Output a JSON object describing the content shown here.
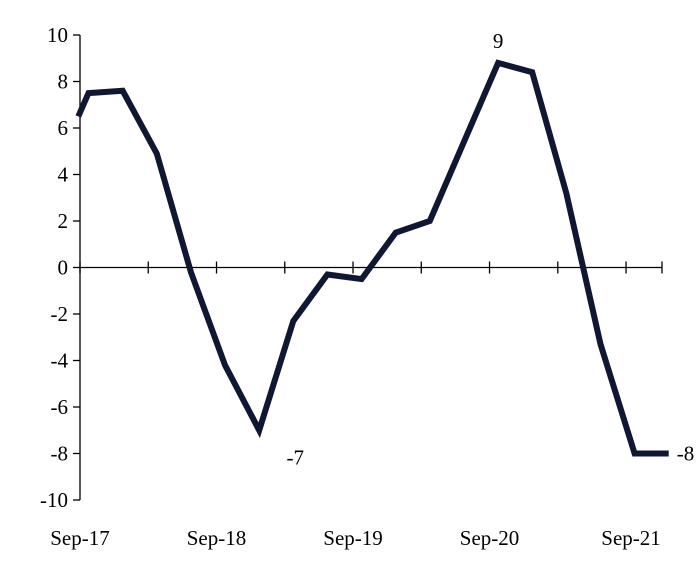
{
  "chart_data": {
    "type": "line",
    "title": "",
    "xlabel": "",
    "ylabel": "",
    "ylim": [
      -10,
      10
    ],
    "yticks": [
      10,
      8,
      6,
      4,
      2,
      0,
      -2,
      -4,
      -6,
      -8,
      -10
    ],
    "ytick_labels": [
      "10",
      "8",
      "6",
      "4",
      "2",
      "0",
      "-2",
      "-4",
      "-6",
      "-8",
      "-10"
    ],
    "x_tick_labels": [
      "Sep-17",
      "Sep-18",
      "Sep-19",
      "Sep-20",
      "Sep-21"
    ],
    "x_range_quarters": [
      0,
      17.2
    ],
    "x_label_quarters": [
      0,
      4,
      8,
      12,
      16
    ],
    "x_tick_mark_quarters": [
      0,
      2,
      4,
      6,
      8,
      10,
      12,
      14,
      16
    ],
    "series": [
      {
        "color": "#0f1733",
        "x": [
          -0.05,
          0.25,
          1.25,
          2.25,
          3.25,
          4.25,
          5.25,
          6.25,
          7.25,
          8.25,
          9.25,
          10.25,
          11.25,
          12.25,
          13.25,
          14.25,
          15.25,
          16.25,
          17.25
        ],
        "values": [
          6.5,
          7.5,
          7.6,
          4.9,
          -0.2,
          -4.2,
          -7.0,
          -2.3,
          -0.3,
          -0.5,
          1.5,
          2.0,
          5.4,
          8.8,
          8.4,
          3.2,
          -3.3,
          -8.0,
          -8.0
        ]
      }
    ],
    "annotations": [
      {
        "text": "9",
        "x_quarter": 12.25,
        "value": 8.8
      },
      {
        "text": "-7",
        "x_quarter": 6.25,
        "value": -7.0
      },
      {
        "text": "-8",
        "x_quarter": 17.25,
        "value": -8.0
      }
    ],
    "grid": false,
    "legend": "none"
  }
}
